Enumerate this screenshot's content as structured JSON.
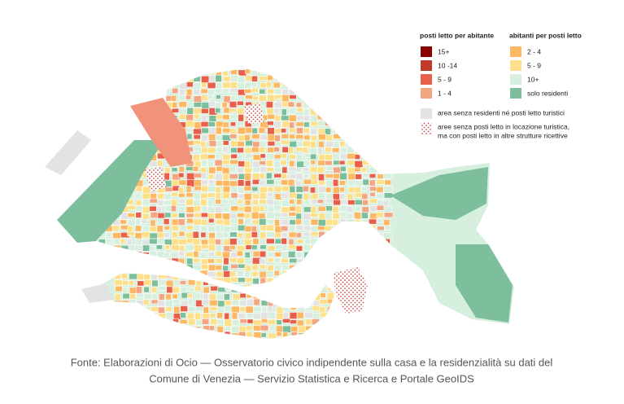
{
  "legend": {
    "groups": [
      {
        "title": "posti letto per abitante",
        "items": [
          "15+",
          "10 -14",
          "5 - 9",
          "1 - 4"
        ]
      },
      {
        "title": "abitanti per posti letto",
        "items": [
          "2 - 4",
          "5 - 9",
          "10+",
          "solo residenti"
        ]
      }
    ],
    "notes": [
      [
        "area senza residenti né posti letto turistici"
      ],
      [
        "aree senza posti letto in locazione turistica,",
        "ma con posti letto in altre strutture ricettive"
      ]
    ]
  },
  "caption": [
    "Fonte: Elaborazioni di Ocio — Osservatorio civico indipendente sulla casa e la residenzialità su dati del",
    "Comune di Venezia — Servizio Statistica e Ricerca e Portale GeoIDS"
  ]
}
